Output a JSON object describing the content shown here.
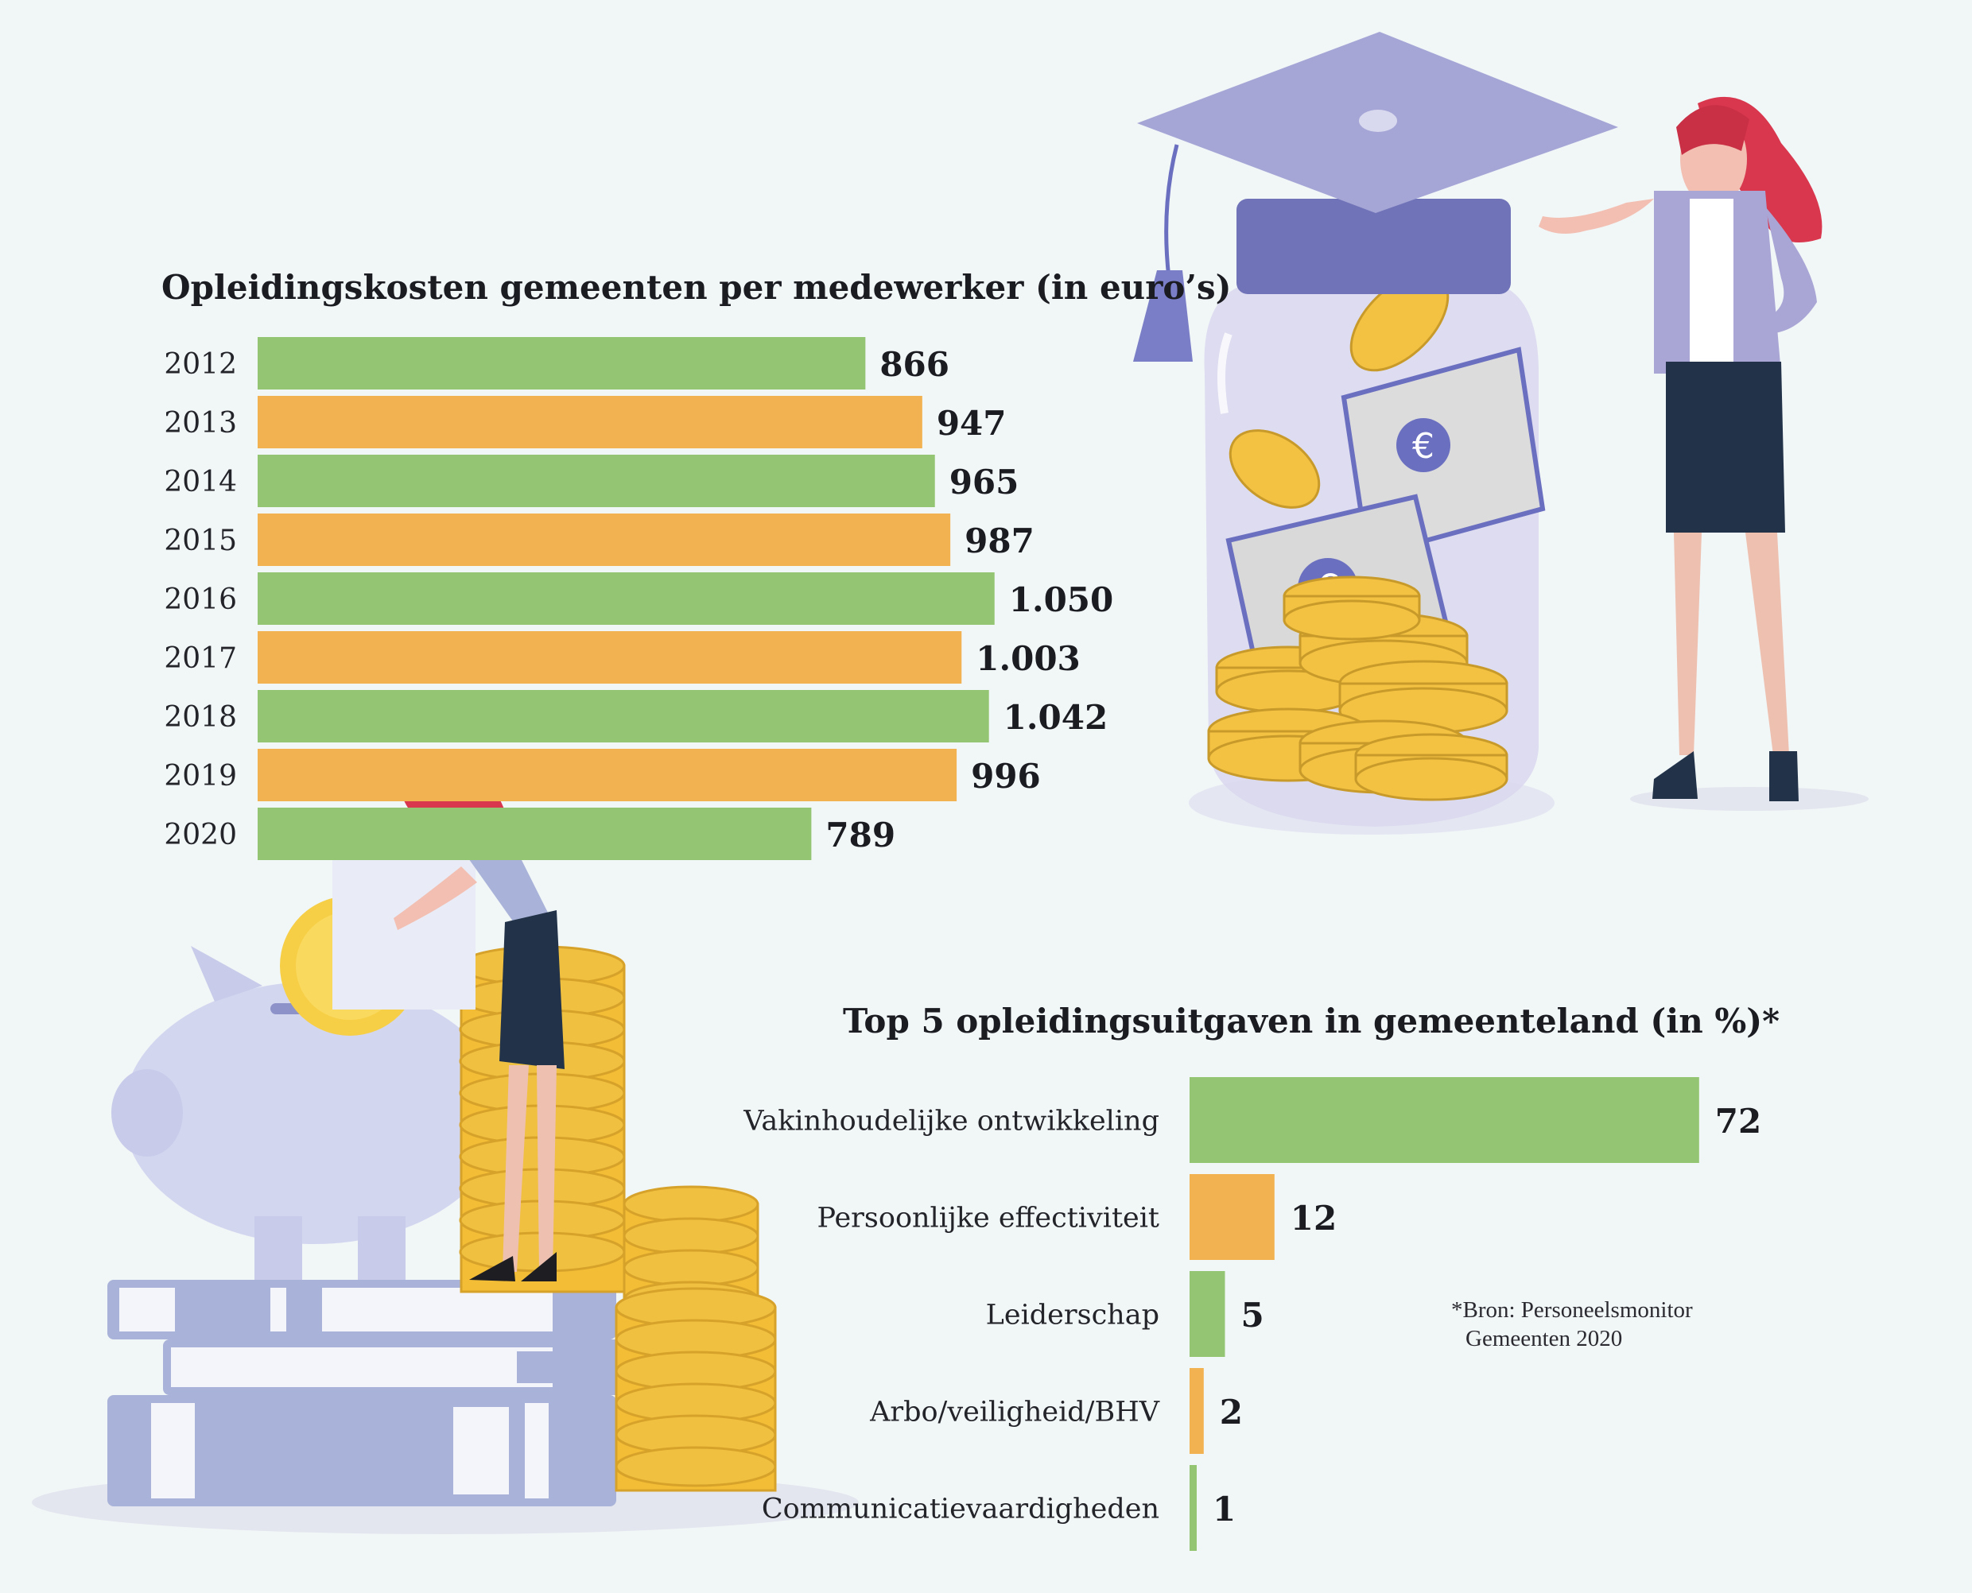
{
  "chart_data": [
    {
      "type": "bar",
      "orientation": "horizontal",
      "title": "Opleidingskosten gemeenten per medewerker (in euro’s)",
      "categories": [
        "2012",
        "2013",
        "2014",
        "2015",
        "2016",
        "2017",
        "2018",
        "2019",
        "2020"
      ],
      "values": [
        866,
        947,
        965,
        987,
        1050,
        1003,
        1042,
        996,
        789
      ],
      "value_labels": [
        "866",
        "947",
        "965",
        "987",
        "1.050",
        "1.003",
        "1.042",
        "996",
        "789"
      ],
      "bar_colors": [
        "#94c572",
        "#f3b251",
        "#94c572",
        "#f3b251",
        "#94c572",
        "#f3b251",
        "#94c572",
        "#f3b251",
        "#94c572"
      ],
      "xlim": [
        0,
        1150
      ],
      "grid": false
    },
    {
      "type": "bar",
      "orientation": "horizontal",
      "title": "Top 5 opleidingsuitgaven in gemeenteland (in %)*",
      "categories": [
        "Vakinhoudelijke ontwikkeling",
        "Persoonlijke effectiviteit",
        "Leiderschap",
        "Arbo/veiligheid/BHV",
        "Communicatievaardigheden"
      ],
      "values": [
        72,
        12,
        5,
        2,
        1
      ],
      "value_labels": [
        "72",
        "12",
        "5",
        "2",
        "1"
      ],
      "bar_colors": [
        "#94c572",
        "#f3b251",
        "#94c572",
        "#f3b251",
        "#94c572"
      ],
      "xlim": [
        0,
        80
      ],
      "grid": false
    }
  ],
  "source_note": [
    "*Bron: Personeelsmonitor",
    "Gemeenten 2020"
  ],
  "colors": {
    "background": "#f1f6f7",
    "green": "#94c572",
    "orange": "#f3b251",
    "lavender": "#a8a8d6",
    "gold": "#f0c040",
    "text": "#1e1e24"
  },
  "illustrations": [
    "graduation-jar-illustration",
    "woman-presenting-illustration",
    "piggy-bank-illustration",
    "woman-inserting-coin-illustration",
    "coin-stacks-illustration",
    "books-stack-illustration"
  ]
}
